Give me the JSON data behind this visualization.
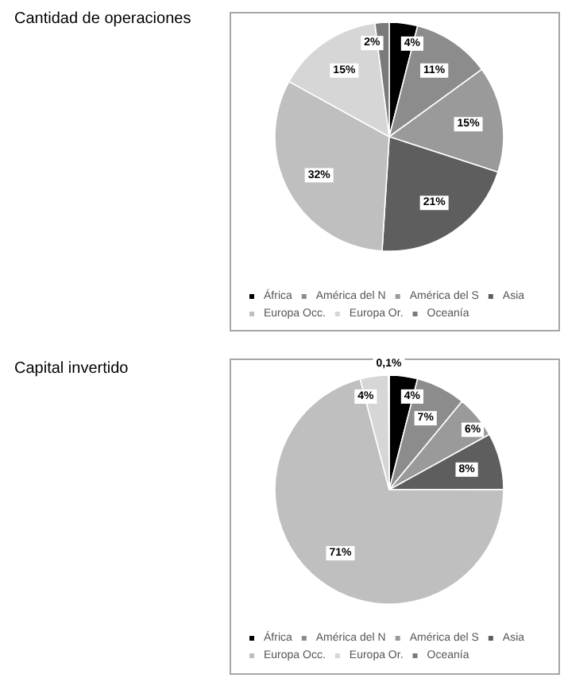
{
  "chart_data": [
    {
      "type": "pie",
      "title": "Cantidad de operaciones",
      "categories": [
        "África",
        "América del N",
        "América del S",
        "Asia",
        "Europa Occ.",
        "Europa Or.",
        "Oceanía"
      ],
      "values": [
        4,
        11,
        15,
        21,
        32,
        15,
        2
      ],
      "value_labels": [
        "4%",
        "11%",
        "15%",
        "21%",
        "32%",
        "15%",
        "2%"
      ],
      "colors": [
        "#000000",
        "#8c8c8c",
        "#9a9a9a",
        "#5e5e5e",
        "#bfbfbf",
        "#d6d6d6",
        "#7a7a7a"
      ],
      "legend": "bottom"
    },
    {
      "type": "pie",
      "title": "Capital invertido",
      "categories": [
        "África",
        "América del N",
        "América del S",
        "Asia",
        "Europa Occ.",
        "Europa Or.",
        "Oceanía"
      ],
      "values": [
        4,
        7,
        6,
        8,
        71,
        4,
        0.1
      ],
      "value_labels": [
        "4%",
        "7%",
        "6%",
        "8%",
        "71%",
        "4%",
        "0,1%"
      ],
      "colors": [
        "#000000",
        "#8c8c8c",
        "#9a9a9a",
        "#5e5e5e",
        "#bfbfbf",
        "#d6d6d6",
        "#7a7a7a"
      ],
      "legend": "bottom"
    }
  ]
}
